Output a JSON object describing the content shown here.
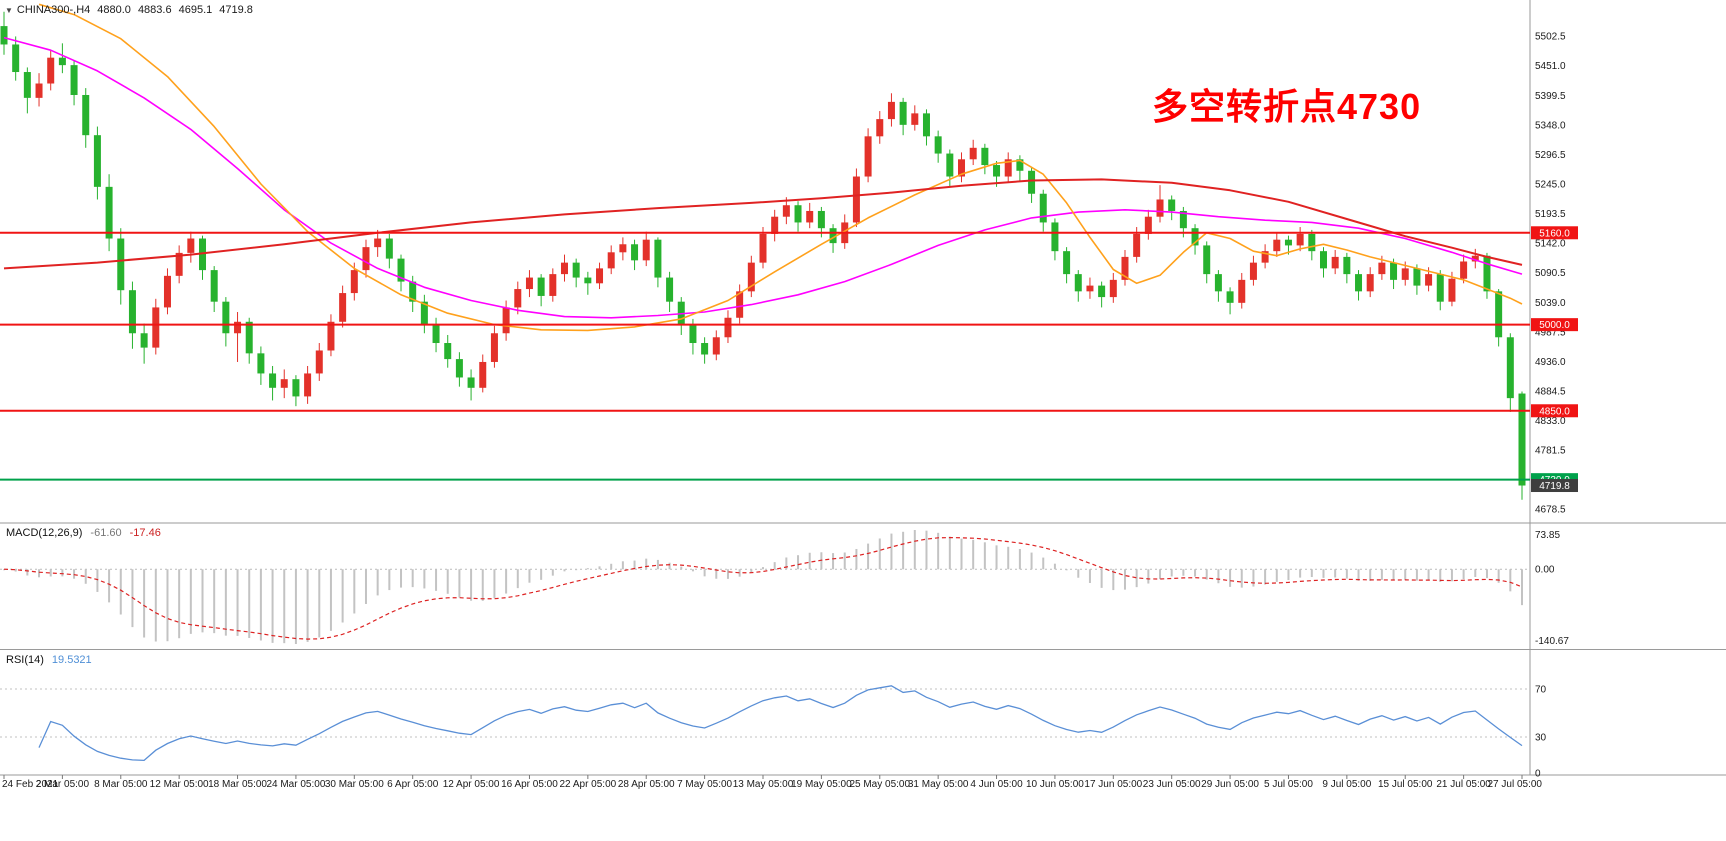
{
  "header": {
    "collapse_icon": "▼",
    "symbol": "CHINA300-,H4",
    "open": "4880.0",
    "high": "4883.6",
    "low": "4695.1",
    "close": "4719.8"
  },
  "annotation": {
    "text": "多空转折点4730",
    "color": "#ff0000"
  },
  "indicators": {
    "macd": {
      "label": "MACD(12,26,9)",
      "value": "-61.60",
      "signal_value": "-17.46",
      "axis_max_label": "73.85",
      "axis_zero_label": "0.00",
      "axis_min_label": "-140.67",
      "axis_max": 73.85,
      "axis_min": -140.67,
      "histogram_color": "#c3c3c3",
      "signal_color": "#dd2222"
    },
    "rsi": {
      "label": "RSI(14)",
      "value": "19.5321",
      "axis_labels": [
        "70",
        "30",
        "0"
      ],
      "levels": [
        70,
        30
      ],
      "line_color": "#5a8fd6"
    }
  },
  "price_axis": {
    "values": [
      5502.5,
      5451.0,
      5399.5,
      5348.0,
      5296.5,
      5245.0,
      5193.5,
      5142.0,
      5090.5,
      5039.0,
      4987.5,
      4936.0,
      4884.5,
      4833.0,
      4781.5,
      4730.0,
      4678.5
    ],
    "max": 5555,
    "min": 4658
  },
  "hlines": [
    {
      "price": 5160.0,
      "label": "5160.0",
      "color": "#f01414"
    },
    {
      "price": 5000.0,
      "label": "5000.0",
      "color": "#f01414"
    },
    {
      "price": 4850.0,
      "label": "4850.0",
      "color": "#f01414"
    },
    {
      "price": 4730.0,
      "label": "4730.0",
      "color": "#00a14b"
    }
  ],
  "current_price": {
    "value": 4719.8,
    "label": "4719.8",
    "bg": "#3f3f3f"
  },
  "chart_data": {
    "type": "candlestick",
    "title": "CHINA300- H4",
    "symbol": "CHINA300-",
    "timeframe": "H4",
    "up_color": "#e3312a",
    "down_color": "#27b22e",
    "ylim": [
      4658,
      5555
    ],
    "x_labels": [
      "24 Feb 2021",
      "2 Mar 05:00",
      "8 Mar 05:00",
      "12 Mar 05:00",
      "18 Mar 05:00",
      "24 Mar 05:00",
      "30 Mar 05:00",
      "6 Apr 05:00",
      "12 Apr 05:00",
      "16 Apr 05:00",
      "22 Apr 05:00",
      "28 Apr 05:00",
      "7 May 05:00",
      "13 May 05:00",
      "19 May 05:00",
      "25 May 05:00",
      "31 May 05:00",
      "4 Jun 05:00",
      "10 Jun 05:00",
      "17 Jun 05:00",
      "23 Jun 05:00",
      "29 Jun 05:00",
      "5 Jul 05:00",
      "9 Jul 05:00",
      "15 Jul 05:00",
      "21 Jul 05:00",
      "27 Jul 05:00"
    ],
    "label_every": 5,
    "candles": [
      [
        5520,
        5545,
        5470,
        5488
      ],
      [
        5488,
        5502,
        5425,
        5440
      ],
      [
        5440,
        5448,
        5368,
        5395
      ],
      [
        5395,
        5438,
        5380,
        5420
      ],
      [
        5420,
        5478,
        5408,
        5465
      ],
      [
        5465,
        5490,
        5438,
        5452
      ],
      [
        5452,
        5460,
        5382,
        5400
      ],
      [
        5400,
        5412,
        5308,
        5330
      ],
      [
        5330,
        5345,
        5218,
        5240
      ],
      [
        5240,
        5262,
        5128,
        5150
      ],
      [
        5150,
        5168,
        5035,
        5060
      ],
      [
        5060,
        5075,
        4958,
        4985
      ],
      [
        4985,
        5002,
        4932,
        4960
      ],
      [
        4960,
        5045,
        4948,
        5030
      ],
      [
        5030,
        5098,
        5018,
        5085
      ],
      [
        5085,
        5138,
        5072,
        5125
      ],
      [
        5125,
        5162,
        5108,
        5150
      ],
      [
        5150,
        5155,
        5078,
        5095
      ],
      [
        5095,
        5102,
        5022,
        5040
      ],
      [
        5040,
        5048,
        4962,
        4985
      ],
      [
        4985,
        5022,
        4935,
        5005
      ],
      [
        5005,
        5012,
        4932,
        4950
      ],
      [
        4950,
        4962,
        4895,
        4915
      ],
      [
        4915,
        4928,
        4868,
        4890
      ],
      [
        4890,
        4922,
        4872,
        4905
      ],
      [
        4905,
        4912,
        4858,
        4875
      ],
      [
        4875,
        4928,
        4862,
        4915
      ],
      [
        4915,
        4968,
        4902,
        4955
      ],
      [
        4955,
        5018,
        4945,
        5005
      ],
      [
        5005,
        5068,
        4995,
        5055
      ],
      [
        5055,
        5108,
        5042,
        5095
      ],
      [
        5095,
        5148,
        5082,
        5135
      ],
      [
        5135,
        5165,
        5118,
        5150
      ],
      [
        5150,
        5158,
        5098,
        5115
      ],
      [
        5115,
        5122,
        5058,
        5075
      ],
      [
        5075,
        5085,
        5022,
        5040
      ],
      [
        5040,
        5052,
        4985,
        5000
      ],
      [
        5000,
        5012,
        4952,
        4968
      ],
      [
        4968,
        4982,
        4925,
        4940
      ],
      [
        4940,
        4952,
        4892,
        4908
      ],
      [
        4908,
        4922,
        4868,
        4890
      ],
      [
        4890,
        4948,
        4882,
        4935
      ],
      [
        4935,
        4998,
        4925,
        4985
      ],
      [
        4985,
        5042,
        4972,
        5030
      ],
      [
        5030,
        5075,
        5018,
        5062
      ],
      [
        5062,
        5095,
        5048,
        5082
      ],
      [
        5082,
        5088,
        5032,
        5050
      ],
      [
        5050,
        5098,
        5040,
        5088
      ],
      [
        5088,
        5122,
        5075,
        5108
      ],
      [
        5108,
        5115,
        5065,
        5082
      ],
      [
        5082,
        5092,
        5052,
        5072
      ],
      [
        5072,
        5108,
        5062,
        5098
      ],
      [
        5098,
        5138,
        5088,
        5126
      ],
      [
        5126,
        5152,
        5112,
        5140
      ],
      [
        5140,
        5148,
        5095,
        5112
      ],
      [
        5112,
        5162,
        5102,
        5148
      ],
      [
        5148,
        5152,
        5065,
        5082
      ],
      [
        5082,
        5092,
        5022,
        5040
      ],
      [
        5040,
        5048,
        4982,
        5000
      ],
      [
        5000,
        5010,
        4948,
        4968
      ],
      [
        4968,
        4978,
        4932,
        4948
      ],
      [
        4948,
        4990,
        4938,
        4978
      ],
      [
        4978,
        5025,
        4968,
        5012
      ],
      [
        5012,
        5070,
        5002,
        5058
      ],
      [
        5058,
        5120,
        5048,
        5108
      ],
      [
        5108,
        5170,
        5098,
        5158
      ],
      [
        5158,
        5200,
        5145,
        5188
      ],
      [
        5188,
        5222,
        5175,
        5208
      ],
      [
        5208,
        5215,
        5162,
        5178
      ],
      [
        5178,
        5212,
        5168,
        5198
      ],
      [
        5198,
        5205,
        5152,
        5168
      ],
      [
        5168,
        5175,
        5125,
        5142
      ],
      [
        5142,
        5192,
        5132,
        5178
      ],
      [
        5178,
        5272,
        5170,
        5258
      ],
      [
        5258,
        5342,
        5248,
        5328
      ],
      [
        5328,
        5372,
        5315,
        5358
      ],
      [
        5358,
        5403,
        5345,
        5388
      ],
      [
        5388,
        5395,
        5330,
        5348
      ],
      [
        5348,
        5382,
        5338,
        5368
      ],
      [
        5368,
        5375,
        5312,
        5328
      ],
      [
        5328,
        5338,
        5282,
        5298
      ],
      [
        5298,
        5305,
        5240,
        5258
      ],
      [
        5258,
        5300,
        5248,
        5288
      ],
      [
        5288,
        5322,
        5278,
        5308
      ],
      [
        5308,
        5315,
        5262,
        5278
      ],
      [
        5278,
        5285,
        5240,
        5258
      ],
      [
        5258,
        5300,
        5248,
        5288
      ],
      [
        5288,
        5295,
        5250,
        5268
      ],
      [
        5268,
        5275,
        5212,
        5228
      ],
      [
        5228,
        5235,
        5162,
        5178
      ],
      [
        5178,
        5185,
        5112,
        5128
      ],
      [
        5128,
        5135,
        5072,
        5088
      ],
      [
        5088,
        5095,
        5040,
        5058
      ],
      [
        5058,
        5082,
        5045,
        5068
      ],
      [
        5068,
        5075,
        5030,
        5048
      ],
      [
        5048,
        5090,
        5038,
        5078
      ],
      [
        5078,
        5130,
        5068,
        5118
      ],
      [
        5118,
        5170,
        5108,
        5158
      ],
      [
        5158,
        5200,
        5148,
        5188
      ],
      [
        5188,
        5243,
        5178,
        5218
      ],
      [
        5218,
        5225,
        5182,
        5198
      ],
      [
        5198,
        5205,
        5152,
        5168
      ],
      [
        5168,
        5175,
        5122,
        5138
      ],
      [
        5138,
        5145,
        5072,
        5088
      ],
      [
        5088,
        5095,
        5040,
        5058
      ],
      [
        5058,
        5065,
        5018,
        5038
      ],
      [
        5038,
        5090,
        5028,
        5078
      ],
      [
        5078,
        5120,
        5068,
        5108
      ],
      [
        5108,
        5140,
        5098,
        5128
      ],
      [
        5128,
        5160,
        5118,
        5148
      ],
      [
        5148,
        5155,
        5122,
        5138
      ],
      [
        5138,
        5170,
        5128,
        5158
      ],
      [
        5158,
        5165,
        5112,
        5128
      ],
      [
        5128,
        5135,
        5082,
        5098
      ],
      [
        5098,
        5130,
        5088,
        5118
      ],
      [
        5118,
        5125,
        5072,
        5088
      ],
      [
        5088,
        5095,
        5042,
        5058
      ],
      [
        5058,
        5100,
        5048,
        5088
      ],
      [
        5088,
        5120,
        5078,
        5108
      ],
      [
        5108,
        5115,
        5062,
        5078
      ],
      [
        5078,
        5110,
        5068,
        5098
      ],
      [
        5098,
        5105,
        5052,
        5068
      ],
      [
        5068,
        5100,
        5058,
        5088
      ],
      [
        5088,
        5095,
        5025,
        5040
      ],
      [
        5040,
        5092,
        5032,
        5080
      ],
      [
        5080,
        5122,
        5072,
        5110
      ],
      [
        5110,
        5132,
        5098,
        5120
      ],
      [
        5120,
        5125,
        5045,
        5058
      ],
      [
        5058,
        5062,
        4962,
        4978
      ],
      [
        4978,
        4985,
        4848,
        4872
      ],
      [
        4880.0,
        4883.6,
        4695.1,
        4719.8
      ]
    ],
    "moving_averages": [
      {
        "name": "ma-fast-magenta",
        "color": "#ff00ff",
        "width": 1.6,
        "points": [
          [
            0,
            5500
          ],
          [
            4,
            5478
          ],
          [
            8,
            5442
          ],
          [
            12,
            5395
          ],
          [
            16,
            5340
          ],
          [
            20,
            5272
          ],
          [
            24,
            5200
          ],
          [
            28,
            5142
          ],
          [
            32,
            5098
          ],
          [
            36,
            5065
          ],
          [
            40,
            5042
          ],
          [
            44,
            5025
          ],
          [
            48,
            5014
          ],
          [
            52,
            5012
          ],
          [
            56,
            5016
          ],
          [
            60,
            5022
          ],
          [
            64,
            5035
          ],
          [
            68,
            5052
          ],
          [
            72,
            5075
          ],
          [
            76,
            5105
          ],
          [
            80,
            5138
          ],
          [
            84,
            5165
          ],
          [
            88,
            5186
          ],
          [
            92,
            5196
          ],
          [
            96,
            5200
          ],
          [
            100,
            5196
          ],
          [
            104,
            5188
          ],
          [
            108,
            5182
          ],
          [
            112,
            5178
          ],
          [
            116,
            5168
          ],
          [
            120,
            5150
          ],
          [
            124,
            5126
          ],
          [
            127,
            5106
          ],
          [
            130,
            5088
          ]
        ]
      },
      {
        "name": "ma-mid-orange",
        "color": "#ffa11c",
        "width": 1.6,
        "points": [
          [
            3,
            5558
          ],
          [
            6,
            5540
          ],
          [
            10,
            5498
          ],
          [
            14,
            5432
          ],
          [
            18,
            5345
          ],
          [
            22,
            5245
          ],
          [
            26,
            5162
          ],
          [
            30,
            5098
          ],
          [
            34,
            5052
          ],
          [
            38,
            5020
          ],
          [
            42,
            5000
          ],
          [
            46,
            4991
          ],
          [
            50,
            4990
          ],
          [
            54,
            4996
          ],
          [
            58,
            5010
          ],
          [
            62,
            5042
          ],
          [
            66,
            5092
          ],
          [
            70,
            5140
          ],
          [
            74,
            5186
          ],
          [
            78,
            5226
          ],
          [
            82,
            5262
          ],
          [
            85,
            5281
          ],
          [
            87,
            5286
          ],
          [
            89,
            5262
          ],
          [
            91,
            5212
          ],
          [
            93,
            5152
          ],
          [
            95,
            5096
          ],
          [
            97,
            5072
          ],
          [
            99,
            5086
          ],
          [
            101,
            5126
          ],
          [
            103,
            5160
          ],
          [
            105,
            5150
          ],
          [
            107,
            5128
          ],
          [
            109,
            5120
          ],
          [
            111,
            5132
          ],
          [
            113,
            5140
          ],
          [
            115,
            5130
          ],
          [
            117,
            5118
          ],
          [
            119,
            5108
          ],
          [
            121,
            5098
          ],
          [
            123,
            5088
          ],
          [
            125,
            5078
          ],
          [
            127,
            5062
          ],
          [
            129,
            5046
          ],
          [
            130,
            5036
          ]
        ]
      },
      {
        "name": "ma-slow-red",
        "color": "#e02222",
        "width": 2,
        "points": [
          [
            0,
            5098
          ],
          [
            8,
            5108
          ],
          [
            16,
            5122
          ],
          [
            24,
            5140
          ],
          [
            32,
            5160
          ],
          [
            40,
            5178
          ],
          [
            48,
            5192
          ],
          [
            56,
            5203
          ],
          [
            64,
            5212
          ],
          [
            70,
            5220
          ],
          [
            76,
            5230
          ],
          [
            82,
            5242
          ],
          [
            88,
            5251
          ],
          [
            94,
            5253
          ],
          [
            100,
            5247
          ],
          [
            105,
            5234
          ],
          [
            110,
            5214
          ],
          [
            115,
            5184
          ],
          [
            120,
            5154
          ],
          [
            124,
            5134
          ],
          [
            127,
            5118
          ],
          [
            130,
            5104
          ]
        ]
      }
    ],
    "macd_params": {
      "fast": 12,
      "slow": 26,
      "signal": 9
    },
    "rsi_params": {
      "period": 14
    }
  }
}
